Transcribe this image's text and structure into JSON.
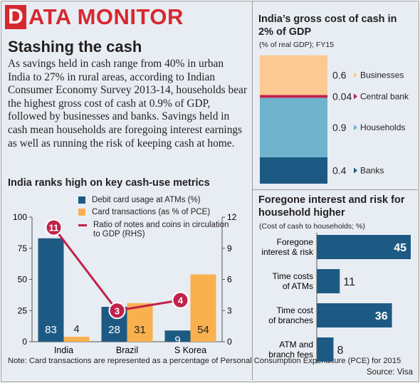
{
  "brand": {
    "initial": "D",
    "rest": "ATA MONITOR"
  },
  "article": {
    "headline": "Stashing the cash",
    "body": "As savings held in cash range from 40% in urban India to 27% in rural areas, according to Indian Consumer Economy Survey 2013-14, households bear the highest gross cost of cash at 0.9% of GDP, followed by businesses and banks. Savings held in cash mean households are foregoing interest earnings as well as running the risk of keeping cash at home."
  },
  "colors": {
    "navy": "#1d5a83",
    "orange": "#f9b04f",
    "line": "#c0224a",
    "peach": "#fbc991",
    "teal": "#6fb3cd",
    "red": "#d7282f"
  },
  "chart_data": [
    {
      "type": "bar",
      "title": "India ranks high on key cash-use metrics",
      "categories": [
        "India",
        "Brazil",
        "S Korea"
      ],
      "series": [
        {
          "name": "Debit card usage at ATMs (%)",
          "values": [
            83,
            28,
            9
          ],
          "color": "#1d5a83"
        },
        {
          "name": "Card transactions (as % of PCE)",
          "values": [
            4,
            31,
            54
          ],
          "color": "#f9b04f"
        },
        {
          "name": "Ratio of notes and coins in circulation to GDP (RHS)",
          "type": "line",
          "axis": "right",
          "values": [
            11,
            3,
            4
          ],
          "color": "#c0224a"
        }
      ],
      "ylim": [
        0,
        100
      ],
      "yticks": [
        "0",
        "25",
        "50",
        "75",
        "100"
      ],
      "y2lim": [
        0,
        12
      ],
      "y2ticks": [
        "0",
        "3",
        "6",
        "9",
        "12"
      ],
      "legend_position": "top",
      "note": "Note: Card transactions are represented as a percentage of Personal Consumption Expenditure (PCE) for 2015"
    },
    {
      "type": "bar",
      "stacked": true,
      "title": "India’s gross cost of cash in 2% of GDP",
      "subtitle": "(% of real GDP); FY15",
      "segments": [
        {
          "name": "Banks",
          "value": 0.4,
          "label": "0.4",
          "color": "#1d5a83"
        },
        {
          "name": "Households",
          "value": 0.9,
          "label": "0.9",
          "color": "#6fb3cd"
        },
        {
          "name": "Central bank",
          "value": 0.04,
          "label": "0.04",
          "color": "#c0224a"
        },
        {
          "name": "Businesses",
          "value": 0.6,
          "label": "0.6",
          "color": "#fbc991"
        }
      ]
    },
    {
      "type": "bar",
      "orientation": "horizontal",
      "title": "Foregone interest and risk for household higher",
      "subtitle": "(Cost of cash to households; %)",
      "categories": [
        "Foregone interest & risk",
        "Time costs of ATMs",
        "Time cost of branches",
        "ATM and branch fees"
      ],
      "values": [
        45,
        11,
        36,
        8
      ],
      "xlim": [
        0,
        45
      ],
      "color": "#1d5a83",
      "source": "Source: Visa"
    }
  ]
}
